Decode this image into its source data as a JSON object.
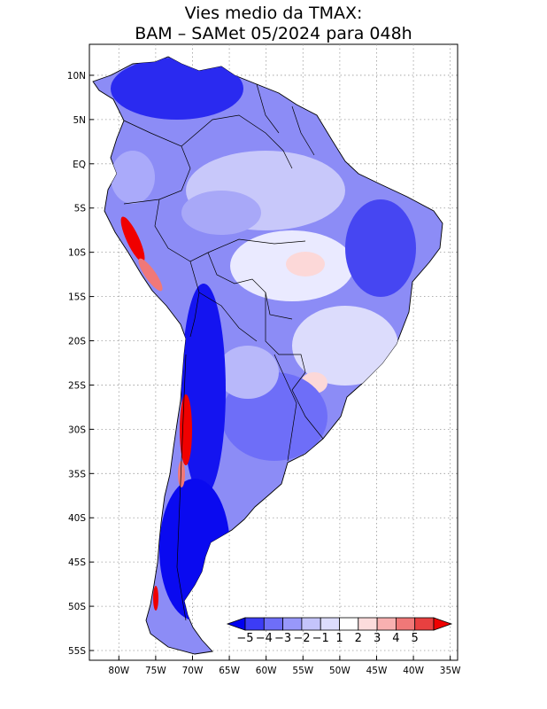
{
  "title_line1": "Vies medio da TMAX:",
  "title_line2": "BAM – SAMet 05/2024  para 048h",
  "lat_labels": [
    {
      "text": "10N",
      "lat": 10
    },
    {
      "text": "5N",
      "lat": 5
    },
    {
      "text": "EQ",
      "lat": 0
    },
    {
      "text": "5S",
      "lat": -5
    },
    {
      "text": "10S",
      "lat": -10
    },
    {
      "text": "15S",
      "lat": -15
    },
    {
      "text": "20S",
      "lat": -20
    },
    {
      "text": "25S",
      "lat": -25
    },
    {
      "text": "30S",
      "lat": -30
    },
    {
      "text": "35S",
      "lat": -35
    },
    {
      "text": "40S",
      "lat": -40
    },
    {
      "text": "45S",
      "lat": -45
    },
    {
      "text": "50S",
      "lat": -50
    },
    {
      "text": "55S",
      "lat": -55
    }
  ],
  "lon_labels": [
    {
      "text": "80W",
      "lon": -80
    },
    {
      "text": "75W",
      "lon": -75
    },
    {
      "text": "70W",
      "lon": -70
    },
    {
      "text": "65W",
      "lon": -65
    },
    {
      "text": "60W",
      "lon": -60
    },
    {
      "text": "55W",
      "lon": -55
    },
    {
      "text": "50W",
      "lon": -50
    },
    {
      "text": "45W",
      "lon": -45
    },
    {
      "text": "40W",
      "lon": -40
    },
    {
      "text": "35W",
      "lon": -35
    }
  ],
  "colorbar": {
    "labels": [
      "−5",
      "−4",
      "−3",
      "−2",
      "−1",
      "1",
      "2",
      "3",
      "4",
      "5"
    ],
    "colors": [
      "#0000f0",
      "#3c3cf5",
      "#6e6ef8",
      "#9898fa",
      "#c4c4fb",
      "#dcdcfc",
      "#ffffff",
      "#fcdcdc",
      "#f8b0b0",
      "#f07878",
      "#e84040",
      "#f00000"
    ]
  },
  "map_colors": {
    "ocean": "#ffffff",
    "light_blue": "#c8c8fa",
    "mid_blue": "#8c8cf6",
    "strong_blue": "#4646f2",
    "deep_blue": "#0a0af0",
    "pale_pink": "#fcd8d8",
    "pink": "#f6a8a8",
    "red": "#f00000"
  }
}
